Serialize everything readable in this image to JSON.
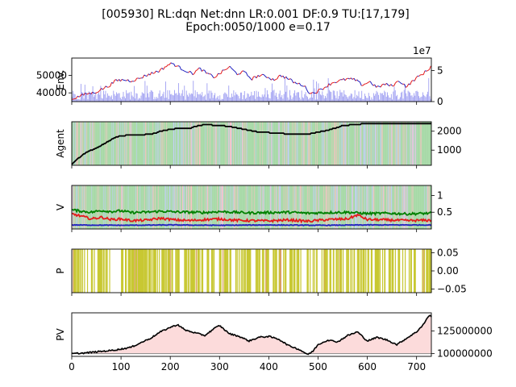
{
  "figure": {
    "title_line1": "[005930] RL:dqn Net:dnn LR:0.001 DF:0.9 TU:[17,179]",
    "title_line2": "Epoch:0050/1000 e=0.17"
  },
  "chart_data": [
    {
      "id": "env",
      "type": "line",
      "ylabel": "Env.",
      "xlim": [
        0,
        730
      ],
      "ylim": [
        35000,
        60000
      ],
      "yticks": [
        40000,
        50000
      ],
      "y2label_offset": "1e7",
      "y2lim": [
        0,
        7
      ],
      "y2ticks": [
        0,
        5
      ],
      "price": {
        "x": [
          0,
          15,
          30,
          45,
          60,
          75,
          90,
          105,
          120,
          135,
          150,
          165,
          180,
          195,
          205,
          215,
          230,
          245,
          260,
          275,
          290,
          305,
          320,
          335,
          350,
          365,
          380,
          395,
          410,
          425,
          440,
          455,
          470,
          485,
          500,
          515,
          530,
          545,
          560,
          575,
          590,
          605,
          620,
          635,
          650,
          665,
          680,
          695,
          710,
          725,
          730
        ],
        "y": [
          36500,
          38000,
          39500,
          40000,
          42000,
          44000,
          47000,
          47500,
          47000,
          48000,
          50000,
          51500,
          53000,
          56000,
          57000,
          55000,
          53000,
          51000,
          54000,
          51000,
          49000,
          52000,
          55000,
          51000,
          52000,
          48000,
          50000,
          49500,
          47500,
          50000,
          48000,
          45500,
          44500,
          39500,
          41000,
          43500,
          46000,
          47000,
          48000,
          47500,
          44500,
          46500,
          43000,
          45000,
          44000,
          47000,
          43500,
          47500,
          50500,
          53500,
          56500
        ]
      },
      "volume_series_name": "volume",
      "volume_scale_note": "bars in units of 1e7"
    },
    {
      "id": "agent",
      "type": "line",
      "ylabel": "Agent",
      "xlim": [
        0,
        730
      ],
      "ylim": [
        200,
        2500
      ],
      "yticks": [
        1000,
        2000
      ],
      "holdings": {
        "x": [
          0,
          10,
          20,
          30,
          40,
          50,
          60,
          70,
          80,
          90,
          100,
          120,
          140,
          160,
          170,
          180,
          200,
          220,
          240,
          250,
          270,
          300,
          320,
          360,
          380,
          420,
          440,
          450,
          470,
          480,
          490,
          500,
          520,
          540,
          550,
          600,
          620,
          660,
          700,
          730
        ],
        "y": [
          250,
          500,
          700,
          900,
          1000,
          1100,
          1250,
          1400,
          1550,
          1700,
          1750,
          1800,
          1800,
          1850,
          1900,
          2000,
          2100,
          2150,
          2150,
          2250,
          2350,
          2300,
          2250,
          2050,
          1950,
          1900,
          1850,
          1850,
          1850,
          1850,
          1900,
          1950,
          2050,
          2200,
          2300,
          2400,
          2400,
          2400,
          2400,
          2400
        ]
      }
    },
    {
      "id": "value",
      "type": "line",
      "ylabel": "V",
      "xlim": [
        0,
        730
      ],
      "ylim": [
        0,
        1.3
      ],
      "yticks": [
        0.5,
        1.0
      ],
      "series": [
        {
          "name": "green",
          "color": "#008000",
          "x": [
            0,
            20,
            40,
            60,
            80,
            100,
            120,
            150,
            180,
            210,
            240,
            270,
            300,
            330,
            360,
            400,
            440,
            480,
            520,
            560,
            600,
            640,
            680,
            730
          ],
          "y": [
            0.57,
            0.53,
            0.5,
            0.55,
            0.52,
            0.54,
            0.49,
            0.5,
            0.53,
            0.51,
            0.5,
            0.49,
            0.52,
            0.5,
            0.48,
            0.49,
            0.5,
            0.47,
            0.49,
            0.5,
            0.46,
            0.47,
            0.45,
            0.47
          ]
        },
        {
          "name": "red",
          "color": "#e41a1c",
          "x": [
            0,
            20,
            40,
            60,
            80,
            100,
            120,
            150,
            180,
            210,
            240,
            270,
            300,
            330,
            360,
            400,
            440,
            480,
            520,
            560,
            580,
            600,
            640,
            680,
            730
          ],
          "y": [
            0.45,
            0.38,
            0.3,
            0.35,
            0.28,
            0.3,
            0.25,
            0.26,
            0.32,
            0.27,
            0.25,
            0.28,
            0.3,
            0.26,
            0.25,
            0.24,
            0.27,
            0.23,
            0.28,
            0.3,
            0.42,
            0.28,
            0.27,
            0.25,
            0.26
          ]
        },
        {
          "name": "blue",
          "color": "#1f1fbf",
          "x": [
            0,
            100,
            200,
            300,
            400,
            500,
            600,
            730
          ],
          "y": [
            0.12,
            0.11,
            0.12,
            0.11,
            0.12,
            0.11,
            0.12,
            0.12
          ]
        }
      ]
    },
    {
      "id": "policy",
      "type": "bar",
      "ylabel": "P",
      "xlim": [
        0,
        730
      ],
      "ylim": [
        -0.06,
        0.06
      ],
      "yticks": [
        0.05,
        0.0,
        -0.05
      ],
      "ytick_labels": [
        "0.05",
        "0.00",
        "−0.05"
      ],
      "bar_color": "#c8c832"
    },
    {
      "id": "pv",
      "type": "line",
      "ylabel": "PV",
      "xlim": [
        0,
        730
      ],
      "ylim": [
        97000000,
        145000000
      ],
      "yticks": [
        100000000,
        125000000
      ],
      "ytick_labels": [
        "100000000",
        "125000000"
      ],
      "xticks": [
        0,
        100,
        200,
        300,
        400,
        500,
        600,
        700
      ],
      "baseline": 100000000,
      "portfolio": {
        "x": [
          0,
          20,
          40,
          60,
          80,
          100,
          120,
          140,
          160,
          180,
          200,
          215,
          230,
          250,
          270,
          290,
          300,
          320,
          340,
          360,
          380,
          400,
          420,
          440,
          460,
          480,
          490,
          500,
          520,
          540,
          560,
          580,
          600,
          620,
          640,
          660,
          680,
          700,
          715,
          725,
          730
        ],
        "y": [
          100000000,
          100500000,
          101500000,
          102500000,
          103500000,
          105000000,
          107000000,
          112000000,
          117000000,
          124000000,
          129000000,
          132000000,
          126000000,
          123000000,
          120000000,
          128000000,
          131000000,
          122000000,
          119000000,
          114000000,
          118000000,
          119000000,
          116000000,
          109000000,
          105000000,
          99000000,
          103000000,
          110000000,
          115000000,
          113000000,
          120000000,
          124000000,
          114000000,
          118000000,
          115000000,
          110000000,
          117000000,
          124000000,
          133000000,
          142000000,
          141000000
        ]
      }
    }
  ]
}
